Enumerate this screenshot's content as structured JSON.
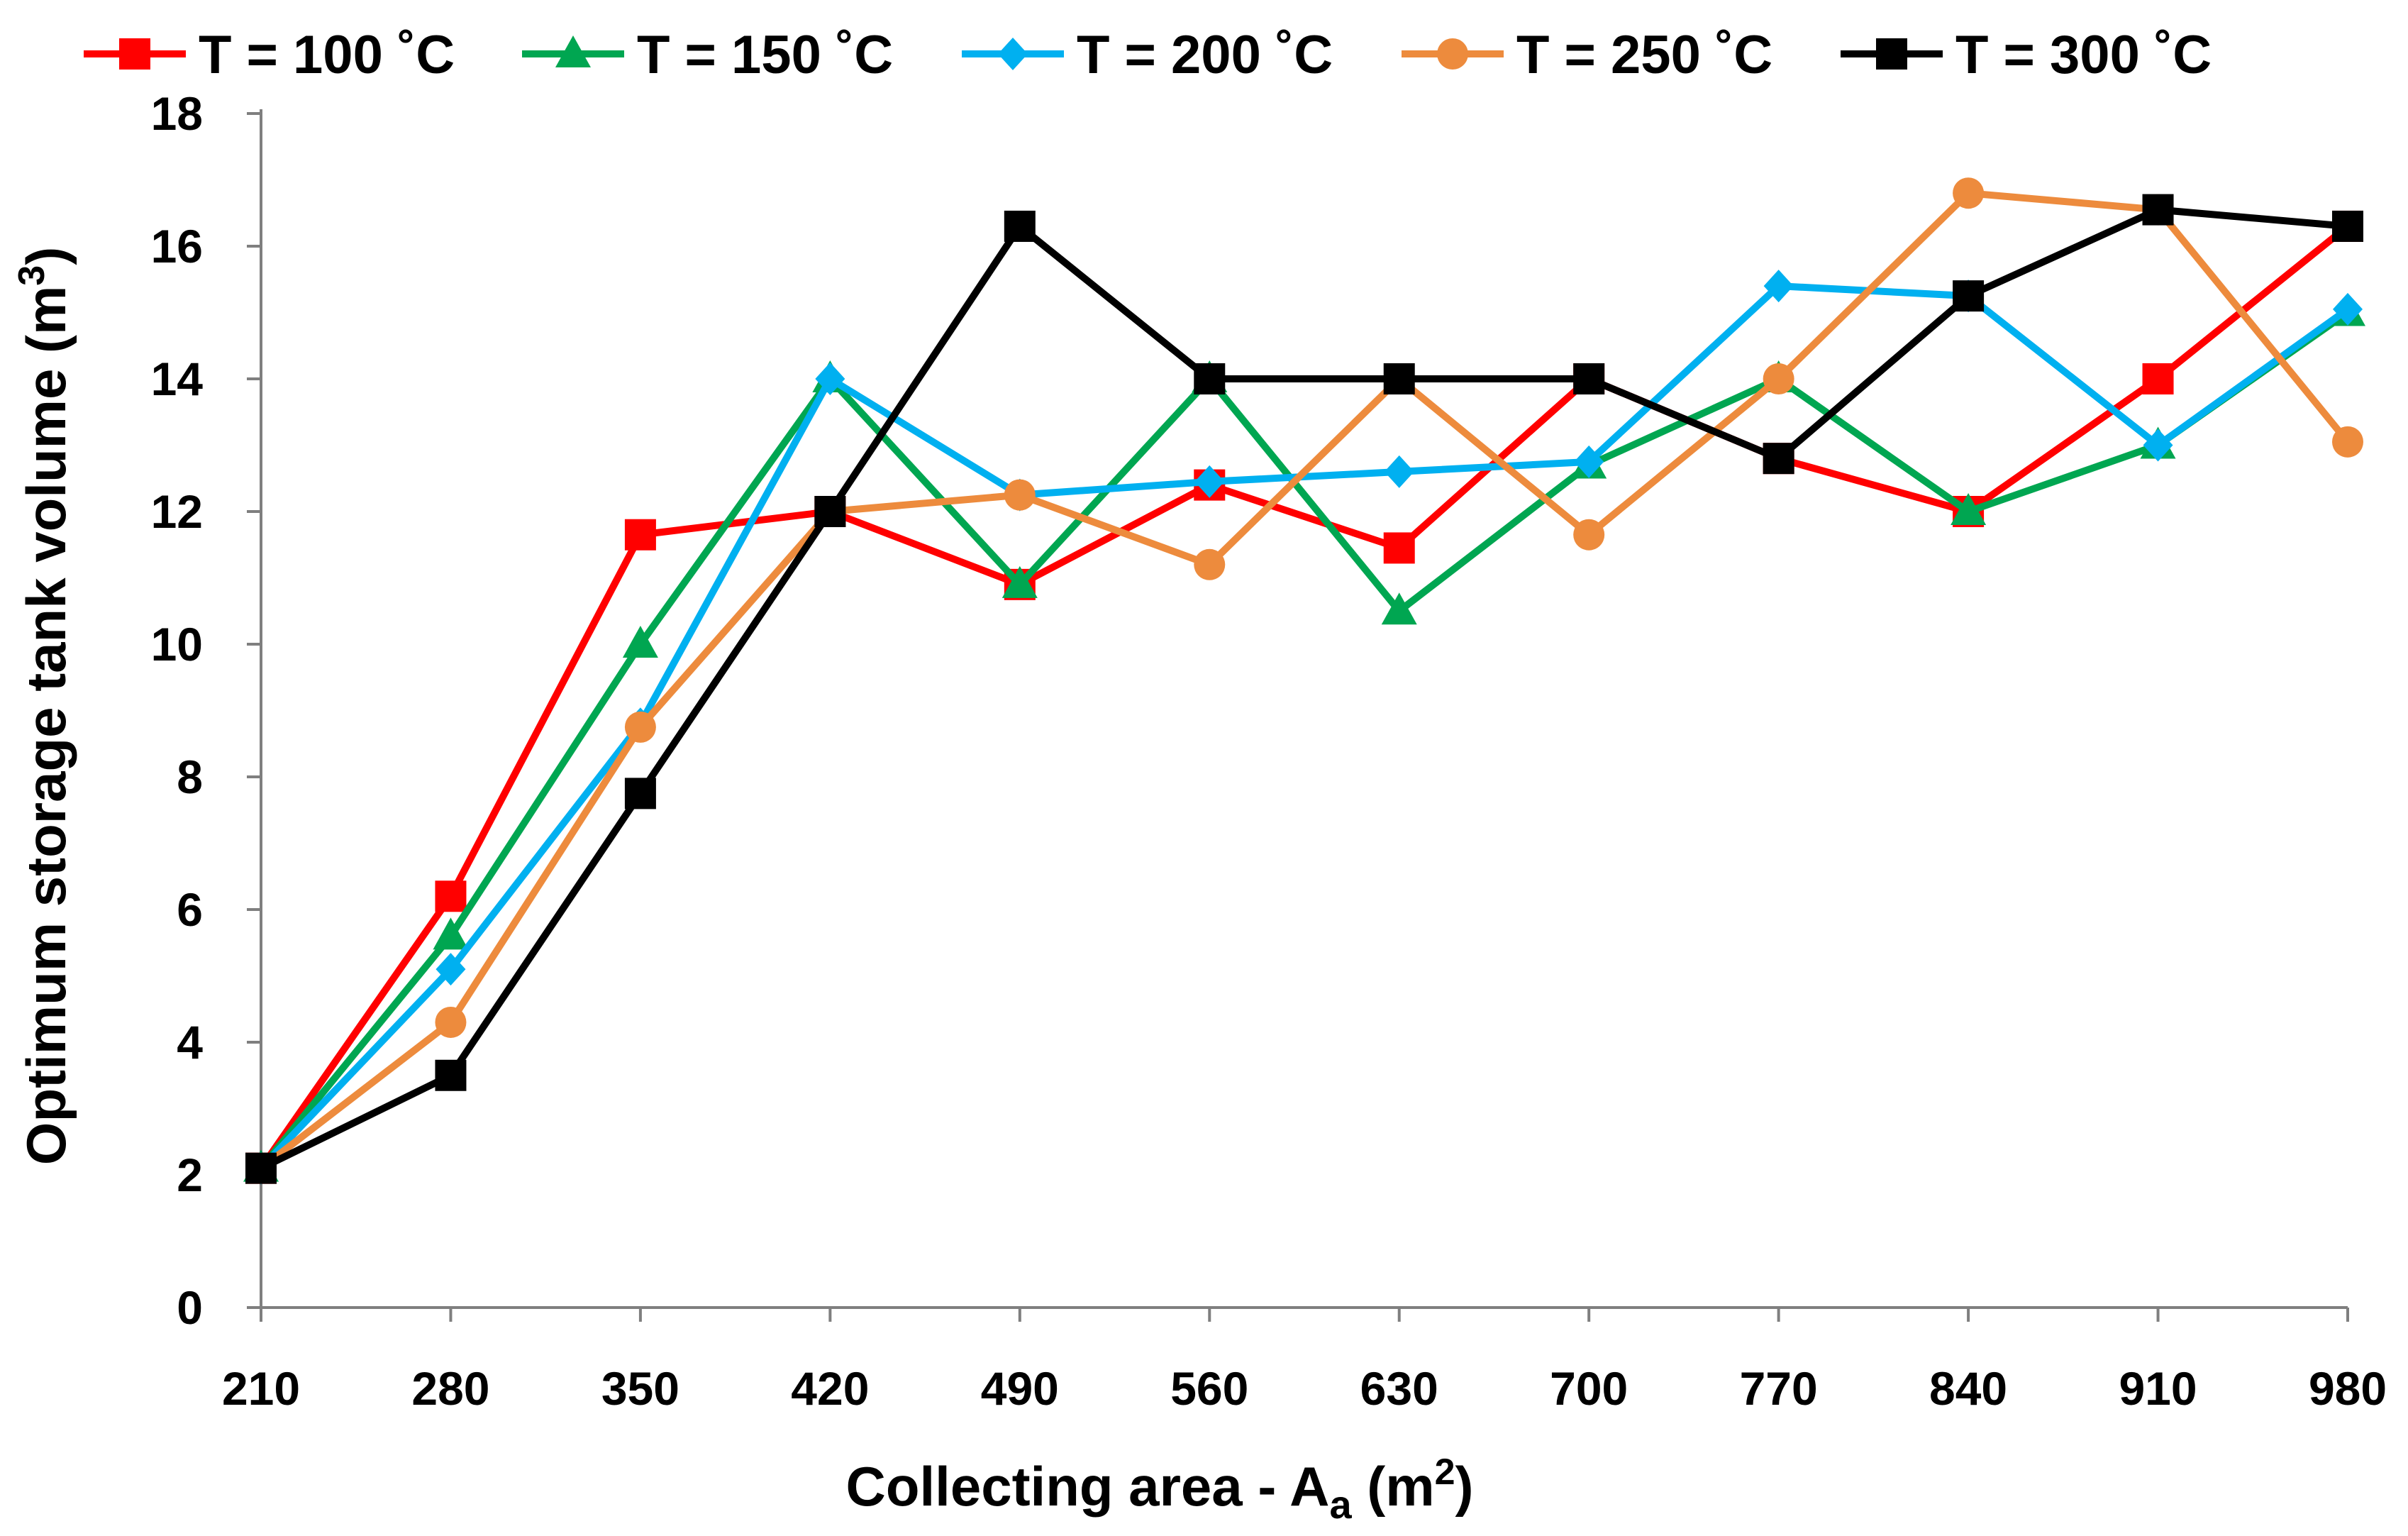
{
  "chart_data": {
    "type": "line",
    "title": "",
    "xlabel": "Collecting area - A",
    "xlabel_sub": "a",
    "xlabel_unit_open": " (m",
    "xlabel_unit_sup": "2",
    "xlabel_unit_close": ")",
    "ylabel": "Optimum storage tank volume (m",
    "ylabel_sup": "3",
    "ylabel_close": ")",
    "categories": [
      "210",
      "280",
      "350",
      "420",
      "490",
      "560",
      "630",
      "700",
      "770",
      "840",
      "910",
      "980"
    ],
    "ylim": [
      0,
      18
    ],
    "yticks": [
      0,
      2,
      4,
      6,
      8,
      10,
      12,
      14,
      16,
      18
    ],
    "grid": false,
    "legend_position": "top",
    "series": [
      {
        "name": "T = 100 ˚C",
        "color": "#FF0000",
        "marker": "square",
        "values": [
          2.1,
          6.2,
          11.65,
          12.0,
          10.9,
          12.4,
          11.45,
          14.0,
          12.8,
          12.0,
          14.0,
          16.3
        ]
      },
      {
        "name": "T = 150 ˚C",
        "color": "#00A651",
        "marker": "triangle",
        "values": [
          2.1,
          5.6,
          10.0,
          14.0,
          10.9,
          14.0,
          10.5,
          12.7,
          14.0,
          12.0,
          13.0,
          15.0
        ]
      },
      {
        "name": "T = 200 ˚C",
        "color": "#00B0F0",
        "marker": "diamond",
        "values": [
          2.1,
          5.1,
          8.8,
          14.0,
          12.25,
          12.45,
          12.6,
          12.75,
          15.4,
          15.25,
          13.0,
          15.05
        ]
      },
      {
        "name": "T = 250 ˚C",
        "color": "#ED8B3D",
        "marker": "circle",
        "values": [
          2.1,
          4.3,
          8.75,
          12.0,
          12.25,
          11.2,
          14.0,
          11.65,
          14.0,
          16.8,
          16.55,
          13.05
        ]
      },
      {
        "name": "T = 300 ˚C",
        "color": "#000000",
        "marker": "square",
        "values": [
          2.1,
          3.5,
          7.75,
          12.0,
          16.3,
          14.0,
          14.0,
          14.0,
          12.8,
          15.25,
          16.55,
          16.3
        ]
      }
    ]
  }
}
